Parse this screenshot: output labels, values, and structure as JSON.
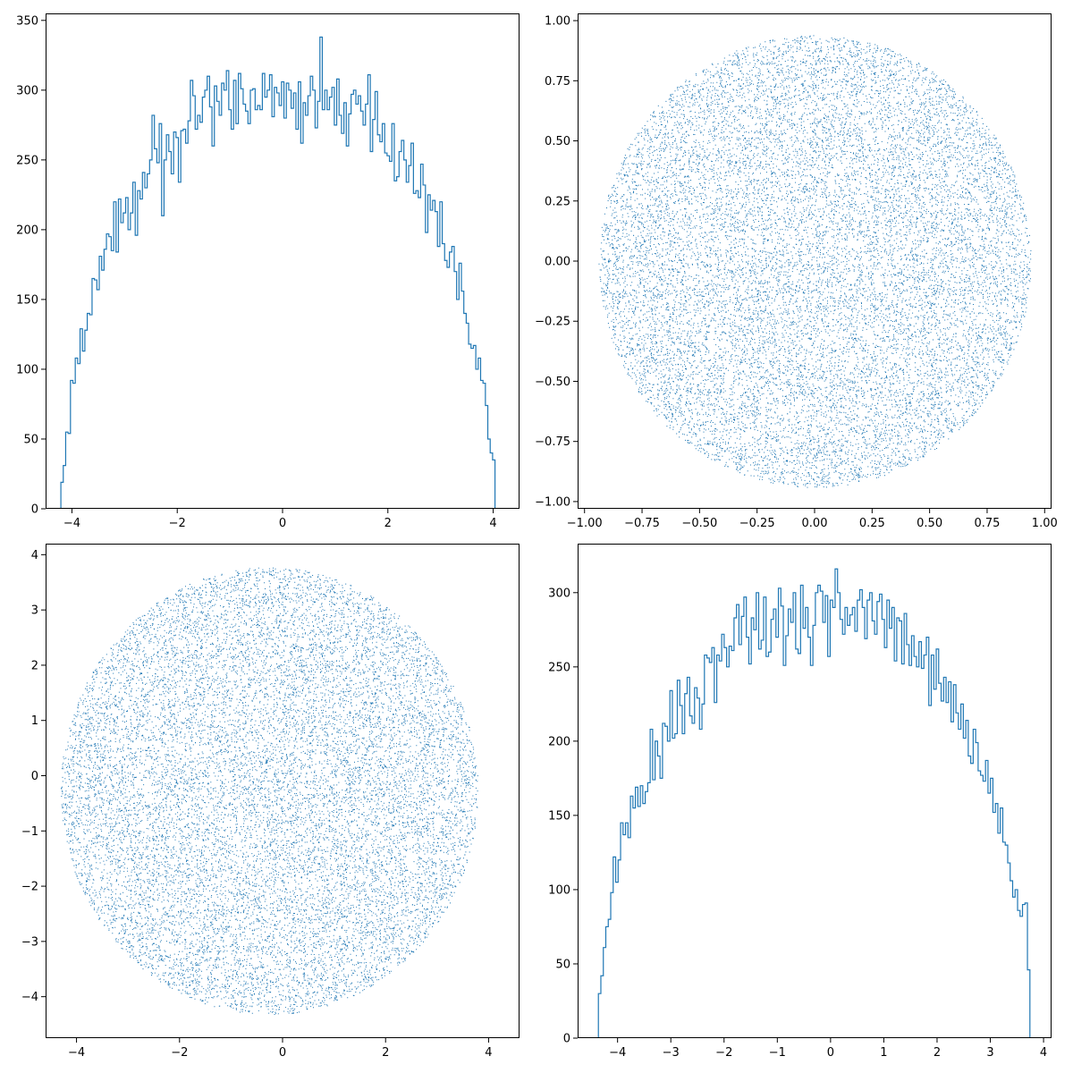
{
  "figure": {
    "background": "#ffffff",
    "series_color": "#1f77b4"
  },
  "chart_data": [
    {
      "id": "top-left",
      "type": "histogram",
      "histtype": "step",
      "title": "",
      "xlabel": "",
      "ylabel": "",
      "xlim": [
        -4.5,
        4.5
      ],
      "ylim": [
        0,
        355
      ],
      "xticks": [
        -4,
        -2,
        0,
        2,
        4
      ],
      "yticks": [
        0,
        50,
        100,
        150,
        200,
        250,
        300,
        350
      ],
      "bins": {
        "x_min": -4.21,
        "x_max": 4.08,
        "peak": 338,
        "peak_x": 0.97,
        "counts": [
          19,
          31,
          55,
          54,
          92,
          90,
          108,
          104,
          129,
          113,
          128,
          140,
          139,
          165,
          164,
          157,
          181,
          171,
          186,
          197,
          195,
          185,
          220,
          184,
          222,
          205,
          212,
          223,
          200,
          212,
          234,
          196,
          228,
          222,
          241,
          230,
          240,
          250,
          282,
          258,
          248,
          276,
          210,
          250,
          268,
          256,
          240,
          270,
          266,
          234,
          271,
          272,
          262,
          278,
          307,
          296,
          272,
          282,
          277,
          295,
          300,
          310,
          288,
          260,
          303,
          292,
          282,
          305,
          300,
          314,
          286,
          272,
          307,
          276,
          312,
          301,
          290,
          285,
          276,
          300,
          301,
          286,
          289,
          286,
          312,
          295,
          300,
          311,
          281,
          302,
          298,
          289,
          306,
          280,
          305,
          300,
          287,
          298,
          272,
          306,
          262,
          291,
          282,
          296,
          310,
          300,
          273,
          292,
          338,
          286,
          300,
          286,
          295,
          302,
          275,
          308,
          282,
          269,
          291,
          260,
          283,
          297,
          300,
          290,
          296,
          285,
          275,
          290,
          311,
          256,
          279,
          299,
          268,
          263,
          276,
          255,
          253,
          249,
          276,
          235,
          238,
          256,
          264,
          250,
          234,
          246,
          262,
          226,
          228,
          223,
          247,
          232,
          198,
          225,
          214,
          221,
          213,
          188,
          220,
          190,
          178,
          173,
          184,
          188,
          170,
          150,
          176,
          156,
          140,
          133,
          118,
          115,
          117,
          100,
          108,
          92,
          90,
          74,
          50,
          40,
          35,
          0
        ]
      },
      "grid": false,
      "legend": "none"
    },
    {
      "id": "top-right",
      "type": "scatter",
      "title": "",
      "xlabel": "",
      "ylabel": "",
      "xlim": [
        -1.03,
        1.03
      ],
      "ylim": [
        -1.03,
        1.03
      ],
      "xticks": [
        -1.0,
        -0.75,
        -0.5,
        -0.25,
        0.0,
        0.25,
        0.5,
        0.75,
        1.0
      ],
      "yticks": [
        -1.0,
        -0.75,
        -0.5,
        -0.25,
        0.0,
        0.25,
        0.5,
        0.75,
        1.0
      ],
      "tick_format": "fixed2",
      "shape": "disk",
      "center": [
        0.0,
        0.0
      ],
      "radius": 0.94,
      "marker": "pixel",
      "grid": false,
      "legend": "none"
    },
    {
      "id": "bottom-left",
      "type": "scatter",
      "title": "",
      "xlabel": "",
      "ylabel": "",
      "xlim": [
        -4.6,
        4.6
      ],
      "ylim": [
        -4.75,
        4.2
      ],
      "xticks": [
        -4,
        -2,
        0,
        2,
        4
      ],
      "yticks": [
        -4,
        -3,
        -2,
        -1,
        0,
        1,
        2,
        3,
        4
      ],
      "shape": "disk",
      "center": [
        -0.26,
        -0.27
      ],
      "radius": 4.05,
      "marker": "pixel",
      "grid": false,
      "legend": "none"
    },
    {
      "id": "bottom-right",
      "type": "histogram",
      "histtype": "step",
      "title": "",
      "xlabel": "",
      "ylabel": "",
      "xlim": [
        -4.75,
        4.15
      ],
      "ylim": [
        0,
        333
      ],
      "xticks": [
        -4,
        -3,
        -2,
        -1,
        0,
        1,
        2,
        3,
        4
      ],
      "yticks": [
        0,
        50,
        100,
        150,
        200,
        250,
        300
      ],
      "bins": {
        "x_min": -4.36,
        "x_max": 3.79,
        "peak": 316,
        "peak_x": -0.07,
        "counts": [
          30,
          42,
          61,
          75,
          80,
          98,
          122,
          105,
          120,
          145,
          137,
          145,
          135,
          163,
          155,
          169,
          156,
          170,
          158,
          166,
          172,
          208,
          174,
          200,
          190,
          175,
          212,
          210,
          200,
          234,
          202,
          205,
          241,
          224,
          205,
          232,
          243,
          217,
          212,
          236,
          229,
          208,
          225,
          258,
          256,
          253,
          263,
          226,
          258,
          254,
          272,
          263,
          250,
          264,
          261,
          283,
          292,
          265,
          284,
          297,
          270,
          252,
          283,
          275,
          300,
          262,
          268,
          297,
          257,
          260,
          282,
          289,
          270,
          303,
          291,
          251,
          271,
          289,
          280,
          300,
          262,
          259,
          305,
          276,
          290,
          270,
          251,
          278,
          300,
          305,
          301,
          280,
          298,
          257,
          295,
          290,
          316,
          300,
          282,
          272,
          290,
          278,
          285,
          290,
          274,
          295,
          302,
          290,
          269,
          295,
          300,
          281,
          272,
          294,
          299,
          282,
          263,
          295,
          276,
          290,
          254,
          283,
          281,
          252,
          286,
          265,
          251,
          271,
          257,
          250,
          267,
          249,
          258,
          270,
          224,
          258,
          235,
          262,
          239,
          227,
          243,
          226,
          240,
          213,
          238,
          219,
          208,
          225,
          202,
          214,
          190,
          185,
          208,
          199,
          180,
          177,
          173,
          187,
          165,
          175,
          152,
          158,
          138,
          155,
          132,
          130,
          118,
          106,
          95,
          100,
          86,
          82,
          90,
          91,
          46,
          0
        ]
      },
      "grid": false,
      "legend": "none"
    }
  ]
}
